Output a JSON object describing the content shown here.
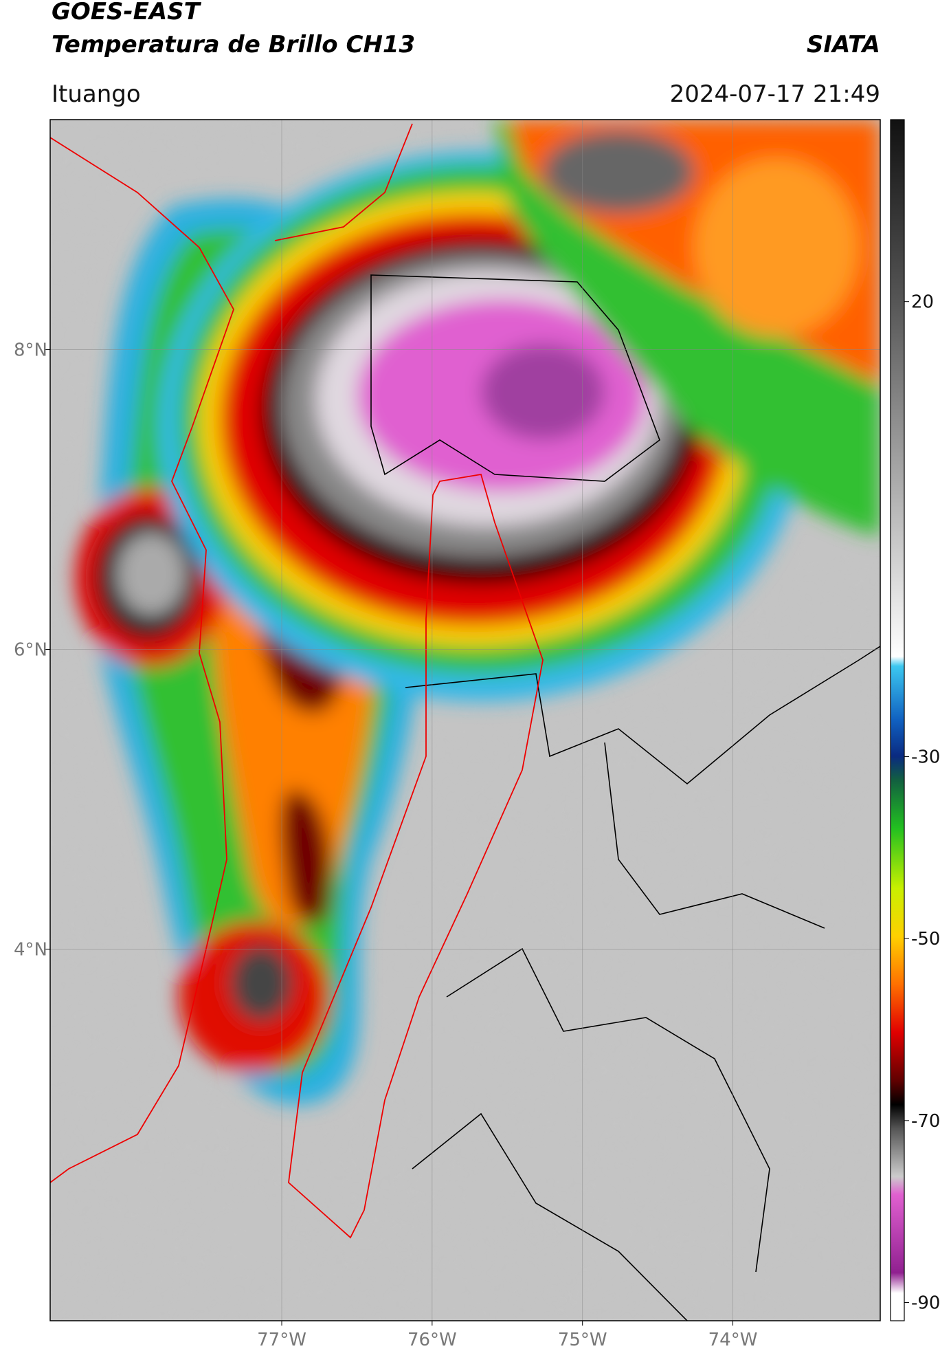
{
  "header": {
    "title": "GOES-EAST",
    "subtitle": "Temperatura de Brillo CH13",
    "source": "SIATA",
    "location": "Ituango",
    "datetime": "2024-07-17 21:49"
  },
  "map": {
    "xlim": [
      -78.54,
      -73.02
    ],
    "ylim": [
      1.52,
      9.535
    ],
    "xticks": [
      {
        "value": -77,
        "label": "77°W"
      },
      {
        "value": -76,
        "label": "76°W"
      },
      {
        "value": -75,
        "label": "75°W"
      },
      {
        "value": -74,
        "label": "74°W"
      }
    ],
    "yticks": [
      {
        "value": 8,
        "label": "8°N"
      },
      {
        "value": 6,
        "label": "6°N"
      },
      {
        "value": 4,
        "label": "4°N"
      }
    ],
    "grid": true
  },
  "colorbar": {
    "lim": [
      -92,
      40
    ],
    "ticks": [
      20,
      -30,
      -50,
      -70,
      -90
    ]
  }
}
